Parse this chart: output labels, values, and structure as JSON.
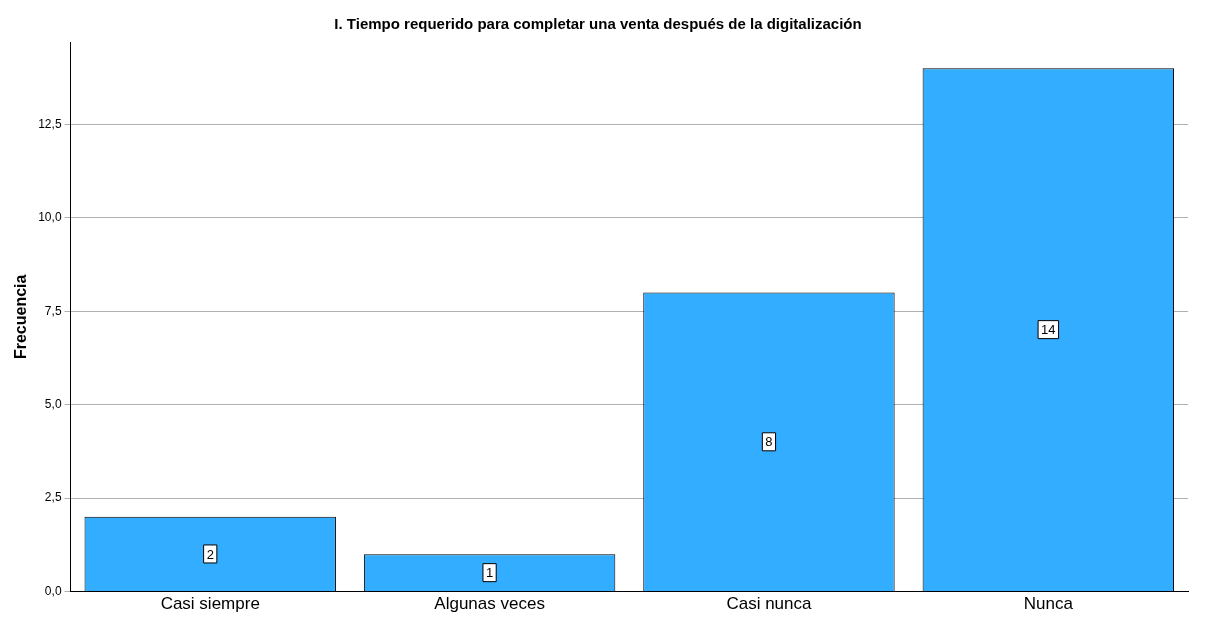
{
  "chart_data": {
    "type": "bar",
    "title": "I. Tiempo requerido para completar una venta después de la digitalización",
    "ylabel": "Frecuencia",
    "categories": [
      "Casi siempre",
      "Algunas veces",
      "Casi nunca",
      "Nunca"
    ],
    "values": [
      2,
      1,
      8,
      14
    ],
    "color": "#33adff",
    "ylim": [
      0,
      14.7
    ],
    "yticks": [
      {
        "value": 0,
        "label": "0,0"
      },
      {
        "value": 2.5,
        "label": "2,5"
      },
      {
        "value": 5,
        "label": "5,0"
      },
      {
        "value": 7.5,
        "label": "7,5"
      },
      {
        "value": 10,
        "label": "10,0"
      },
      {
        "value": 12.5,
        "label": "12,5"
      }
    ],
    "grid": "y",
    "data_labels": true,
    "legend": false
  }
}
